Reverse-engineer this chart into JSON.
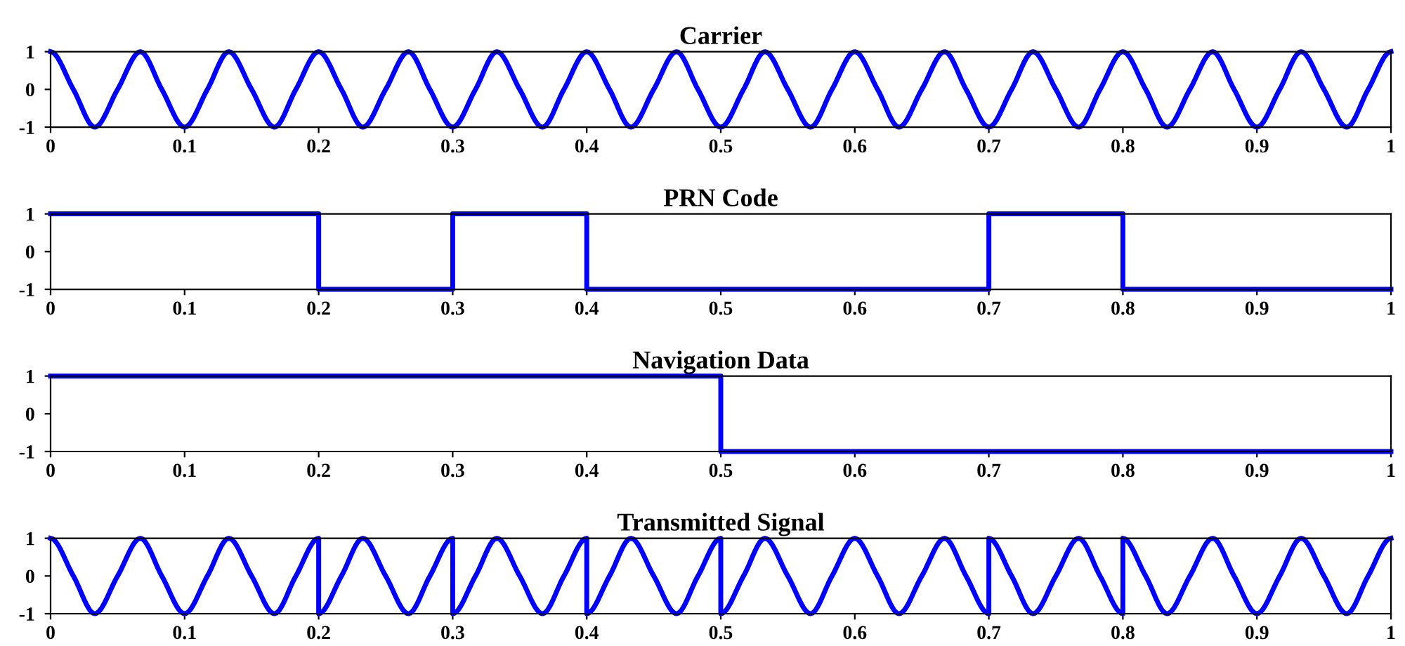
{
  "chart_data": [
    {
      "type": "line",
      "title": "Carrier",
      "color": "#0000ff",
      "xlim": [
        0,
        1
      ],
      "ylim": [
        -1,
        1
      ],
      "xticks": [
        0,
        0.1,
        0.2,
        0.3,
        0.4,
        0.5,
        0.6,
        0.7,
        0.8,
        0.9,
        1
      ],
      "yticks": [
        -1,
        0,
        1
      ],
      "grid": false,
      "x": [
        0,
        0.017,
        0.033,
        0.05,
        0.067,
        0.083,
        0.1,
        0.117,
        0.133,
        0.15,
        0.167,
        0.183,
        0.2,
        0.217,
        0.233,
        0.25,
        0.267,
        0.283,
        0.3,
        0.317,
        0.333,
        0.35,
        0.367,
        0.383,
        0.4,
        0.417,
        0.433,
        0.45,
        0.467,
        0.483,
        0.5,
        0.517,
        0.533,
        0.55,
        0.567,
        0.583,
        0.6,
        0.617,
        0.633,
        0.65,
        0.667,
        0.683,
        0.7,
        0.717,
        0.733,
        0.75,
        0.767,
        0.783,
        0.8,
        0.817,
        0.833,
        0.85,
        0.867,
        0.883,
        0.9,
        0.917,
        0.933,
        0.95,
        0.967,
        0.983,
        1
      ],
      "values": [
        1,
        0,
        -1,
        0,
        1,
        0,
        -1,
        0,
        1,
        0,
        -1,
        0,
        1,
        0,
        -1,
        0,
        1,
        0,
        -1,
        0,
        1,
        0,
        -1,
        0,
        1,
        0,
        -1,
        0,
        1,
        0,
        -1,
        0,
        1,
        0,
        -1,
        0,
        1,
        0,
        -1,
        0,
        1,
        0,
        -1,
        0,
        1,
        0,
        -1,
        0,
        1,
        0,
        -1,
        0,
        1,
        0,
        -1,
        0,
        1,
        0,
        -1,
        0,
        1
      ]
    },
    {
      "type": "step",
      "title": "PRN Code",
      "color": "#0000ff",
      "xlim": [
        0,
        1
      ],
      "ylim": [
        -1,
        1
      ],
      "xticks": [
        0,
        0.1,
        0.2,
        0.3,
        0.4,
        0.5,
        0.6,
        0.7,
        0.8,
        0.9,
        1
      ],
      "yticks": [
        -1,
        0,
        1
      ],
      "grid": false,
      "x": [
        0,
        0.2,
        0.3,
        0.4,
        0.7,
        0.8,
        1
      ],
      "values": [
        1,
        -1,
        1,
        -1,
        1,
        -1,
        -1
      ]
    },
    {
      "type": "step",
      "title": "Navigation Data",
      "color": "#0000ff",
      "xlim": [
        0,
        1
      ],
      "ylim": [
        -1,
        1
      ],
      "xticks": [
        0,
        0.1,
        0.2,
        0.3,
        0.4,
        0.5,
        0.6,
        0.7,
        0.8,
        0.9,
        1
      ],
      "yticks": [
        -1,
        0,
        1
      ],
      "grid": false,
      "x": [
        0,
        0.5,
        1
      ],
      "values": [
        1,
        -1,
        -1
      ]
    },
    {
      "type": "line",
      "title": "Transmitted Signal",
      "color": "#0000ff",
      "xlim": [
        0,
        1
      ],
      "ylim": [
        -1,
        1
      ],
      "xticks": [
        0,
        0.1,
        0.2,
        0.3,
        0.4,
        0.5,
        0.6,
        0.7,
        0.8,
        0.9,
        1
      ],
      "yticks": [
        -1,
        0,
        1
      ],
      "grid": false,
      "x": [
        0,
        0.017,
        0.033,
        0.05,
        0.067,
        0.083,
        0.1,
        0.117,
        0.133,
        0.15,
        0.167,
        0.183,
        0.2,
        0.2,
        0.217,
        0.233,
        0.25,
        0.267,
        0.283,
        0.3,
        0.3,
        0.317,
        0.333,
        0.35,
        0.367,
        0.383,
        0.4,
        0.4,
        0.417,
        0.433,
        0.45,
        0.467,
        0.483,
        0.5,
        0.5,
        0.517,
        0.533,
        0.55,
        0.567,
        0.583,
        0.6,
        0.617,
        0.633,
        0.65,
        0.667,
        0.683,
        0.7,
        0.7,
        0.717,
        0.733,
        0.75,
        0.767,
        0.783,
        0.8,
        0.8,
        0.817,
        0.833,
        0.85,
        0.867,
        0.883,
        0.9,
        0.917,
        0.933,
        0.95,
        0.967,
        0.983,
        1
      ],
      "values": [
        1,
        0,
        -1,
        0,
        1,
        0,
        -1,
        0,
        1,
        0,
        -1,
        0,
        1,
        -1,
        0,
        1,
        0,
        -1,
        0,
        1,
        -1,
        0,
        1,
        0,
        -1,
        0,
        1,
        -1,
        0,
        1,
        0,
        -1,
        0,
        1,
        -1,
        0,
        1,
        0,
        -1,
        0,
        1,
        0,
        -1,
        0,
        1,
        0,
        -1,
        1,
        0,
        -1,
        0,
        1,
        0,
        -1,
        1,
        0,
        -1,
        0,
        1,
        0,
        -1,
        0,
        1,
        0,
        -1,
        0,
        1
      ]
    }
  ]
}
